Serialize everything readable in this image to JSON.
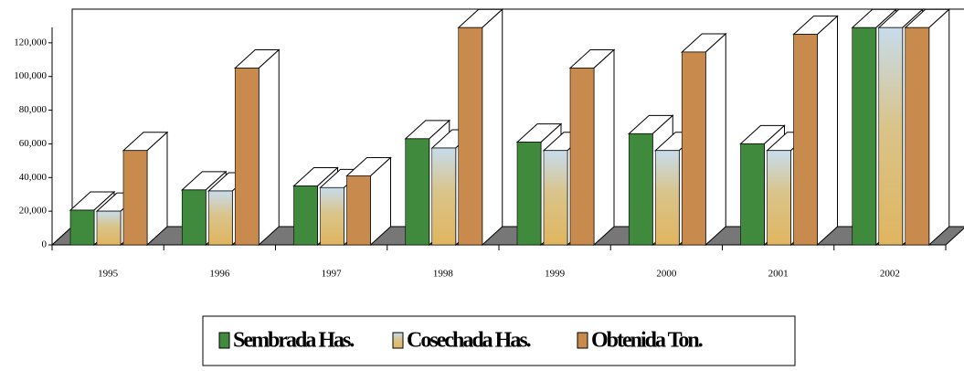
{
  "chart_data": {
    "type": "bar",
    "categories": [
      "1995",
      "1996",
      "1997",
      "1998",
      "1999",
      "2000",
      "2001",
      "2002"
    ],
    "series": [
      {
        "name": "Sembrada Has.",
        "color": "#3f8a3c",
        "values": [
          20600,
          32600,
          35000,
          63000,
          61000,
          66000,
          60000,
          129000
        ]
      },
      {
        "name": "Cosechada Has.",
        "color": "#b9d5e6",
        "values": [
          20000,
          32000,
          34000,
          57500,
          56000,
          56000,
          56000,
          129000
        ]
      },
      {
        "name": "Obtenida Ton.",
        "color": "#c98a4e",
        "values": [
          56000,
          105000,
          41000,
          129000,
          105000,
          114500,
          125000,
          129000
        ]
      }
    ],
    "ylim": [
      0,
      140000
    ],
    "yticks": [
      0,
      {
        "value": 20000,
        "label": "20,000"
      },
      {
        "value": 40000,
        "label": "40,000"
      },
      {
        "value": 60000,
        "label": "60,000"
      },
      {
        "value": 80000,
        "label": "80,000"
      },
      {
        "value": 100000,
        "label": "100,000"
      },
      {
        "value": 120000,
        "label": "120,000"
      }
    ]
  }
}
